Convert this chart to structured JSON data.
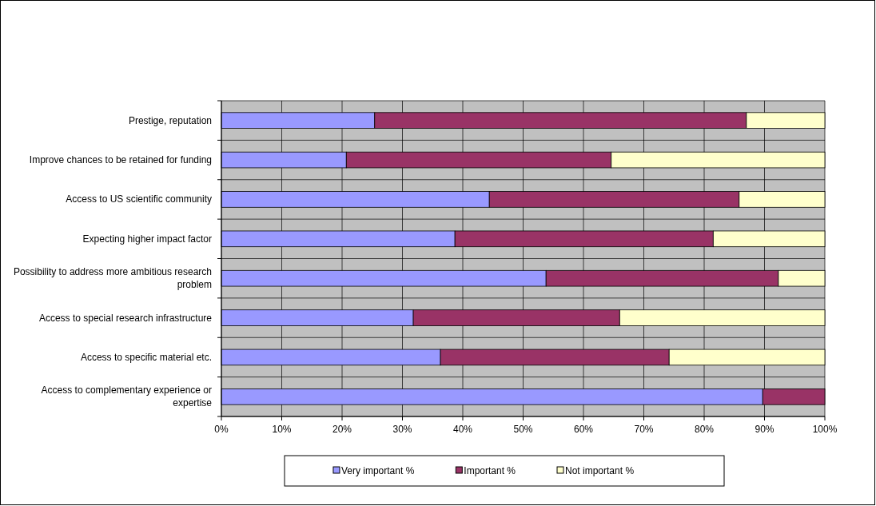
{
  "chart_data": {
    "type": "bar",
    "orientation": "horizontal",
    "stacked": true,
    "grid": true,
    "legend": "bottom",
    "categories": [
      "Prestige, reputation",
      "Improve chances to be retained for funding",
      "Access to US scientific community",
      "Expecting higher impact factor",
      "Possibility to address more ambitious research problem",
      "Access to special research infrastructure",
      "Access to specific material etc.",
      "Access to complementary experience or expertise"
    ],
    "series": [
      {
        "name": "Very important %",
        "color": "#9999ff",
        "values": [
          25.4,
          20.7,
          44.4,
          38.7,
          53.8,
          31.8,
          36.3,
          89.7
        ]
      },
      {
        "name": "Important %",
        "color": "#993366",
        "values": [
          61.6,
          43.9,
          41.4,
          42.8,
          38.5,
          34.2,
          37.9,
          10.3
        ]
      },
      {
        "name": "Not important %",
        "color": "#ffffcc",
        "values": [
          13.0,
          35.4,
          14.2,
          18.5,
          7.7,
          34.0,
          25.8,
          0
        ]
      }
    ],
    "xlim": [
      0,
      100
    ],
    "xticks": [
      {
        "value": 0,
        "label": "0%"
      },
      {
        "value": 10,
        "label": "10%"
      },
      {
        "value": 20,
        "label": "20%"
      },
      {
        "value": 30,
        "label": "30%"
      },
      {
        "value": 40,
        "label": "40%"
      },
      {
        "value": 50,
        "label": "50%"
      },
      {
        "value": 60,
        "label": "60%"
      },
      {
        "value": 70,
        "label": "70%"
      },
      {
        "value": 80,
        "label": "80%"
      },
      {
        "value": 90,
        "label": "90%"
      },
      {
        "value": 100,
        "label": "100%"
      }
    ]
  }
}
